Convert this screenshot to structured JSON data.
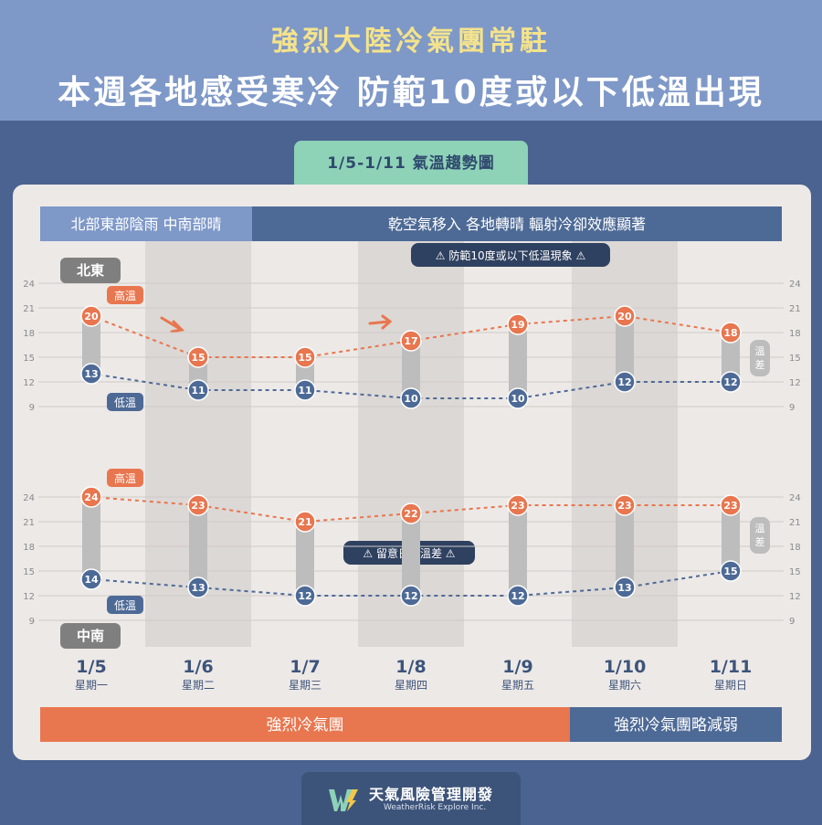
{
  "header": {
    "title_line1": "強烈大陸冷氣團常駐",
    "title_line2": "本週各地感受寒冷  防範10度或以下低溫出現"
  },
  "tab_label": "1/5-1/11  氣溫趨勢圖",
  "weather_banner": {
    "left": "北部東部陰雨  中南部晴",
    "right": "乾空氣移入  各地轉晴  輻射冷卻效應顯著"
  },
  "warning_low_temp": "防範10度或以下低溫現象",
  "warning_diurnal": "留意日夜溫差",
  "airmass": {
    "strong": "強烈冷氣團",
    "weakening": "強烈冷氣團略減弱"
  },
  "footer": {
    "brand_zh": "天氣風險管理開發",
    "brand_en": "WeatherRisk Explore Inc."
  },
  "chart_data": [
    {
      "type": "line",
      "region": "北東",
      "categories": [
        "1/5",
        "1/6",
        "1/7",
        "1/8",
        "1/9",
        "1/10",
        "1/11"
      ],
      "weekdays": [
        "星期一",
        "星期二",
        "星期三",
        "星期四",
        "星期五",
        "星期六",
        "星期日"
      ],
      "series": [
        {
          "name": "高溫",
          "values": [
            20,
            15,
            15,
            17,
            19,
            20,
            18
          ]
        },
        {
          "name": "低溫",
          "values": [
            13,
            11,
            11,
            10,
            10,
            12,
            12
          ]
        }
      ],
      "ylim": [
        9,
        24
      ],
      "yticks": [
        24,
        21,
        18,
        15,
        12,
        9
      ],
      "range_label": "溫差"
    },
    {
      "type": "line",
      "region": "中南",
      "categories": [
        "1/5",
        "1/6",
        "1/7",
        "1/8",
        "1/9",
        "1/10",
        "1/11"
      ],
      "weekdays": [
        "星期一",
        "星期二",
        "星期三",
        "星期四",
        "星期五",
        "星期六",
        "星期日"
      ],
      "series": [
        {
          "name": "高溫",
          "values": [
            24,
            23,
            21,
            22,
            23,
            23,
            23
          ]
        },
        {
          "name": "低溫",
          "values": [
            14,
            13,
            12,
            12,
            12,
            13,
            15
          ]
        }
      ],
      "ylim": [
        9,
        24
      ],
      "yticks": [
        24,
        21,
        18,
        15,
        12,
        9
      ],
      "range_label": "溫差"
    }
  ],
  "colors": {
    "high": "#e8764f",
    "low": "#4d6a96",
    "bar": "#bdbdbd",
    "banner_left": "#7e98c8",
    "banner_right": "#4d6a96",
    "strong": "#e8764f",
    "weak": "#4d6a96"
  }
}
